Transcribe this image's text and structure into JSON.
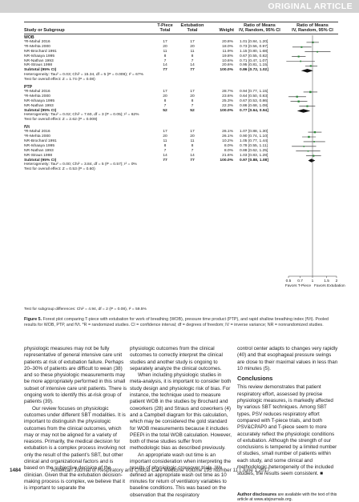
{
  "banner": "ORIGINAL ARTICLE",
  "headers": {
    "study": "Study or Subgroup",
    "tpiece_a": "T-Piece",
    "tpiece_b": "Total",
    "extub_a": "Extubation",
    "extub_b": "Total",
    "weight": "Weight",
    "rom_a": "Ratio of Means",
    "rom_b": "IV, Random, 95% CI",
    "rom2_a": "Ratio of Means",
    "rom2_b": "IV, Random, 95% CI"
  },
  "chart_data": {
    "type": "forest",
    "x_scale": "log",
    "xlim": [
      0.5,
      2
    ],
    "x_ticks": [
      "0.5",
      "0.7",
      "1",
      "1.5",
      "2"
    ],
    "x_tick_values": [
      0.5,
      0.7,
      1,
      1.5,
      2
    ],
    "null_line": 1,
    "favours_left": "Favors T-Piece",
    "favours_right": "Favors Extubation",
    "subtest": "Test for subgroup differences: Chi² = 4.94, df = 2 (P = 0.08), I² = 59.5%",
    "subgroups": [
      {
        "name": "WOB",
        "studies": [
          {
            "study": "*R-Mahul 2016",
            "tp": "17",
            "ex": "17",
            "w": "20.8%",
            "ci_text": "1.01 [0.84, 1.20]",
            "est": 1.01,
            "lo": 0.84,
            "hi": 1.2
          },
          {
            "study": "*R-Mehta 2000",
            "tp": "20",
            "ex": "20",
            "w": "18.0%",
            "ci_text": "0.73 [0.56, 0.97]",
            "est": 0.73,
            "lo": 0.56,
            "hi": 0.97
          },
          {
            "study": "NR-Brochard 1991",
            "tp": "11",
            "ex": "11",
            "w": "11.9%",
            "ci_text": "1.15 [0.80, 1.68]",
            "est": 1.15,
            "lo": 0.8,
            "hi": 1.68
          },
          {
            "study": "NR-Ishaaya 1995",
            "tp": "8",
            "ex": "8",
            "w": "19.8%",
            "ci_text": "0.67 [0.55, 0.82]",
            "est": 0.67,
            "lo": 0.55,
            "hi": 0.82
          },
          {
            "study": "NR-Nathan 1993",
            "tp": "7",
            "ex": "7",
            "w": "10.6%",
            "ci_text": "0.71 [0.47, 1.07]",
            "est": 0.71,
            "lo": 0.47,
            "hi": 1.07
          },
          {
            "study": "NR-Straus 1998",
            "tp": "14",
            "ex": "14",
            "w": "20.6%",
            "ci_text": "0.95 [0.81, 1.15]",
            "est": 0.95,
            "lo": 0.81,
            "hi": 1.15
          }
        ],
        "subtotal": {
          "label": "Subtotal (95% CI)",
          "tp": "77",
          "ex": "77",
          "w": "100.0%",
          "ci_text": "0.86 [0.72, 1.02]",
          "est": 0.86,
          "lo": 0.72,
          "hi": 1.02
        },
        "het": "Heterogeneity: Tau² = 0.03; Chi² = 15.34, df = 5 (P = 0.009); I² = 67%",
        "overall": "Test for overall effect: Z = 1.74 (P = 0.08)"
      },
      {
        "name": "PTP",
        "studies": [
          {
            "study": "*R-Mahul 2016",
            "tp": "17",
            "ex": "17",
            "w": "28.7%",
            "ci_text": "0.94 [0.77, 1.15]",
            "est": 0.94,
            "lo": 0.77,
            "hi": 1.15
          },
          {
            "study": "*R-Mehta 2000",
            "tp": "20",
            "ex": "20",
            "w": "23.6%",
            "ci_text": "0.64 [0.50, 0.83]",
            "est": 0.64,
            "lo": 0.5,
            "hi": 0.83
          },
          {
            "study": "NR-Ishaaya 1995",
            "tp": "8",
            "ex": "8",
            "w": "25.3%",
            "ci_text": "0.67 [0.53, 0.86]",
            "est": 0.67,
            "lo": 0.53,
            "hi": 0.86
          },
          {
            "study": "NR-Nathan 1993",
            "tp": "7",
            "ex": "7",
            "w": "22.3%",
            "ci_text": "0.86 [0.68, 1.08]",
            "est": 0.86,
            "lo": 0.68,
            "hi": 1.08
          }
        ],
        "subtotal": {
          "label": "Subtotal (95% CI)",
          "tp": "52",
          "ex": "52",
          "w": "100.0%",
          "ci_text": "0.77 [0.64, 0.94]",
          "est": 0.77,
          "lo": 0.64,
          "hi": 0.94
        },
        "het": "Heterogeneity: Tau² = 0.02; Chi² = 7.60, df = 3 (P = 0.05); I² = 62%",
        "overall": "Test for overall effect: Z = 2.62 (P = 0.009)"
      },
      {
        "name": "fVt",
        "studies": [
          {
            "study": "*R-Mahul 2016",
            "tp": "17",
            "ex": "17",
            "w": "26.1%",
            "ci_text": "1.07 [0.88, 1.30]",
            "est": 1.07,
            "lo": 0.88,
            "hi": 1.3
          },
          {
            "study": "*R-Mehta 2000",
            "tp": "20",
            "ex": "20",
            "w": "26.1%",
            "ci_text": "0.90 [0.74, 1.10]",
            "est": 0.9,
            "lo": 0.74,
            "hi": 1.1
          },
          {
            "study": "NR-Brochard 1991",
            "tp": "11",
            "ex": "11",
            "w": "10.2%",
            "ci_text": "1.05 [0.77, 1.44]",
            "est": 1.05,
            "lo": 0.77,
            "hi": 1.44
          },
          {
            "study": "NR-Ishaaya 1995",
            "tp": "8",
            "ex": "8",
            "w": "8.0%",
            "ci_text": "0.78 [0.55, 1.11]",
            "est": 0.78,
            "lo": 0.55,
            "hi": 1.11
          },
          {
            "study": "NR-Nathan 1993",
            "tp": "7",
            "ex": "7",
            "w": "8.0%",
            "ci_text": "0.88 [0.62, 1.25]",
            "est": 0.88,
            "lo": 0.62,
            "hi": 1.25
          },
          {
            "study": "NR-Straus 1998",
            "tp": "14",
            "ex": "14",
            "w": "21.6%",
            "ci_text": "1.03 [0.83, 1.28]",
            "est": 1.03,
            "lo": 0.83,
            "hi": 1.28
          }
        ],
        "subtotal": {
          "label": "Subtotal (95% CI)",
          "tp": "77",
          "ex": "77",
          "w": "100.0%",
          "ci_text": "0.97 [0.88, 1.08]",
          "est": 0.97,
          "lo": 0.88,
          "hi": 1.08
        },
        "het": "Heterogeneity: Tau² = 0.00; Chi² = 3.84, df = 5 (P = 0.57); I² = 0%",
        "overall": "Test for overall effect: Z = 0.53 (P = 0.60)"
      }
    ]
  },
  "caption": {
    "label": "Figure 5.",
    "text": "Forest plot comparing T-piece with extubation for work of breathing (WOB), pressure time product (PTP), and rapid shallow breathing index (fVt). Pooled results for WOB, PTP, and fVt. *R = randomized studies. CI = confidence interval; df = degrees of freedom; IV = inverse variance; NR = nonrandomized studies."
  },
  "body": {
    "col1_p1": "physiologic measures may not be fully representative of general intensive care unit patients at risk of extubation failure. Perhaps 20–30% of patients are difficult to wean (38) and so these physiologic measurements may be more appropriately performed in this small subset of intensive care unit patients. There is ongoing work to identify this at-risk group of patients (39).",
    "col1_p2": "Our review focuses on physiologic outcomes under different SBT modalities. It is important to distinguish the physiologic outcomes from the clinical outcomes, which may or may not be aligned for a variety of reasons. Primarily, the medical decision for extubation is a complex process involving not only the result of the patient’s SBT, but other clinical and organizational factors and is based on the subjective decision of the clinician. Given that the extubation decision-making process is complex, we believe that it is important to separate the",
    "col2_p1": "physiologic outcomes from the clinical outcomes to correctly interpret the clinical studies and another study is ongoing to separately analyze the clinical outcomes.",
    "col2_p2": "When including physiologic studies in meta-analysis, it is important to consider both study design and physiologic risk of bias. For instance, the technique used to measure patient WOB in the studies by Brochard and coworkers (28) and Straus and coworkers (4) and a Campbell diagram for this calculation, which may be considered the gold standard for WOB measurements because it includes PEEPi in the total WOB calculation. However, both of these studies suffer from methodologic bias as described previously.",
    "col2_p3": "An appropriate wash out time is an important consideration when interpreting the results of physiologic crossover trials. We defined an appropriate wash out time as 10 minutes for return of ventilatory variables to baseline conditions. This was based on the observation that the respiratory",
    "col3_p1": "control center adapts to changes very rapidly (40) and that esophageal pressure swings are close to their maximal values in less than 10 minutes (5).",
    "conclusions_title": "Conclusions",
    "col3_p2": "This review demonstrates that patient respiratory effort, assessed by precise physiologic measures, is markedly affected by various SBT techniques. Among SBT types, PSV reduces respiratory effort compared with T-piece trials, and both PSV&CPAP0 and T-piece seem to more accurately reflect the physiologic conditions of extubation. Although the strength of our conclusions is tempered by a limited number of studies, small number of patients within each study, and some clinical and methodologic heterogeneity of the included studies, the results seem consistent.",
    "end_mark": "■",
    "disclosure_title": "Author disclosures",
    "disclosure_text": "are available with the text of this article at www.atsjournals.org."
  },
  "footer": {
    "page": "1484",
    "journal": "American Journal of Respiratory and Critical Care Medicine Volume 195 Number 11 | June 1 2017"
  }
}
